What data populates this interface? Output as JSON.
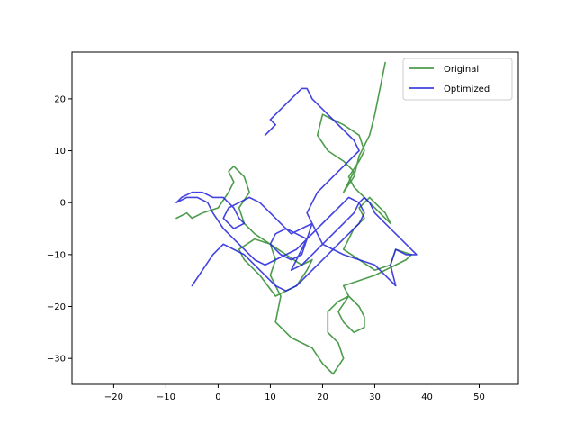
{
  "chart_data": {
    "type": "line",
    "title": "",
    "xlabel": "",
    "ylabel": "",
    "xlim": [
      -28,
      57.5
    ],
    "ylim": [
      -35,
      29
    ],
    "xticks": [
      -20,
      -10,
      0,
      10,
      20,
      30,
      40,
      50
    ],
    "yticks": [
      -30,
      -20,
      -10,
      0,
      10,
      20
    ],
    "grid": false,
    "legend_position": "top-right",
    "series": [
      {
        "name": "Original",
        "color": "#2e8b2e",
        "x": [
          -8,
          -6,
          -5,
          -3,
          0,
          2,
          3,
          2,
          3,
          5,
          6,
          4,
          5,
          7,
          10,
          13,
          16,
          18,
          17,
          15,
          11,
          8,
          5,
          4,
          7,
          10,
          11,
          10,
          12,
          11,
          14,
          18,
          20,
          22,
          24,
          23,
          21,
          21,
          23,
          25,
          27,
          28,
          28,
          26,
          24,
          23,
          25,
          24,
          27,
          30,
          34,
          36,
          37,
          34,
          33,
          30,
          27,
          24,
          25,
          26,
          28,
          27,
          29,
          30,
          32,
          33,
          30,
          28,
          26,
          25,
          27,
          28,
          27,
          24,
          22,
          20,
          19,
          21,
          24,
          26,
          25,
          24,
          26,
          27,
          28,
          29,
          30,
          31,
          32
        ],
        "y": [
          -3,
          -2,
          -3,
          -2,
          -1,
          2,
          4,
          6,
          7,
          5,
          2,
          -1,
          -4,
          -6,
          -8,
          -10,
          -12,
          -11,
          -13,
          -16,
          -18,
          -14,
          -11,
          -9,
          -7,
          -8,
          -11,
          -14,
          -18,
          -23,
          -26,
          -28,
          -31,
          -33,
          -30,
          -27,
          -25,
          -21,
          -19,
          -18,
          -20,
          -22,
          -24,
          -25,
          -23,
          -21,
          -18,
          -16,
          -15,
          -14,
          -12,
          -11,
          -10,
          -9,
          -12,
          -13,
          -11,
          -9,
          -7,
          -5,
          -3,
          -1,
          1,
          0,
          -2,
          -4,
          -1,
          1,
          3,
          5,
          8,
          10,
          13,
          15,
          16,
          17,
          13,
          10,
          8,
          6,
          4,
          2,
          5,
          9,
          11,
          13,
          17,
          22,
          27
        ]
      },
      {
        "name": "Optimized",
        "color": "#2222dd",
        "x": [
          -5,
          -3,
          -1,
          1,
          3,
          5,
          7,
          9,
          11,
          13,
          15,
          17,
          19,
          21,
          23,
          25,
          27,
          28,
          27,
          25,
          23,
          21,
          19,
          17,
          15,
          13,
          11,
          9,
          7,
          5,
          3,
          1,
          -1,
          -2,
          -4,
          -6,
          -8,
          -7,
          -5,
          -3,
          -1,
          1,
          2,
          3,
          4,
          5,
          3,
          1,
          2,
          4,
          6,
          8,
          10,
          12,
          14,
          16,
          18,
          17,
          16,
          14,
          12,
          10,
          11,
          13,
          15,
          17,
          16,
          15,
          14,
          16,
          18,
          20,
          22,
          24,
          26,
          27,
          28,
          29,
          30,
          32,
          34,
          36,
          38,
          36,
          34,
          33,
          34,
          32,
          30,
          27,
          24,
          22,
          20,
          19,
          18,
          17,
          18,
          19,
          21,
          23,
          25,
          27,
          26,
          24,
          22,
          20,
          18,
          17,
          16,
          15,
          14,
          13,
          12,
          11,
          10,
          11,
          10,
          9
        ],
        "y": [
          -16,
          -13,
          -10,
          -8,
          -9,
          -10,
          -12,
          -14,
          -16,
          -17,
          -16,
          -14,
          -12,
          -10,
          -8,
          -6,
          -4,
          -2,
          0,
          1,
          -1,
          -3,
          -5,
          -7,
          -9,
          -10,
          -11,
          -12,
          -11,
          -9,
          -7,
          -5,
          -2,
          0,
          1,
          1,
          0,
          1,
          2,
          2,
          1,
          1,
          0,
          -1,
          -3,
          -4,
          -5,
          -3,
          -1,
          0,
          1,
          0,
          -2,
          -4,
          -6,
          -5,
          -4,
          -7,
          -10,
          -11,
          -10,
          -8,
          -6,
          -5,
          -6,
          -7,
          -9,
          -11,
          -13,
          -12,
          -10,
          -8,
          -6,
          -4,
          -2,
          0,
          1,
          0,
          -2,
          -4,
          -6,
          -8,
          -10,
          -10,
          -9,
          -12,
          -16,
          -14,
          -12,
          -11,
          -10,
          -9,
          -8,
          -6,
          -4,
          -2,
          0,
          2,
          4,
          6,
          8,
          10,
          12,
          14,
          16,
          18,
          20,
          22,
          22,
          21,
          20,
          19,
          18,
          17,
          16,
          15,
          14,
          13
        ]
      }
    ]
  }
}
